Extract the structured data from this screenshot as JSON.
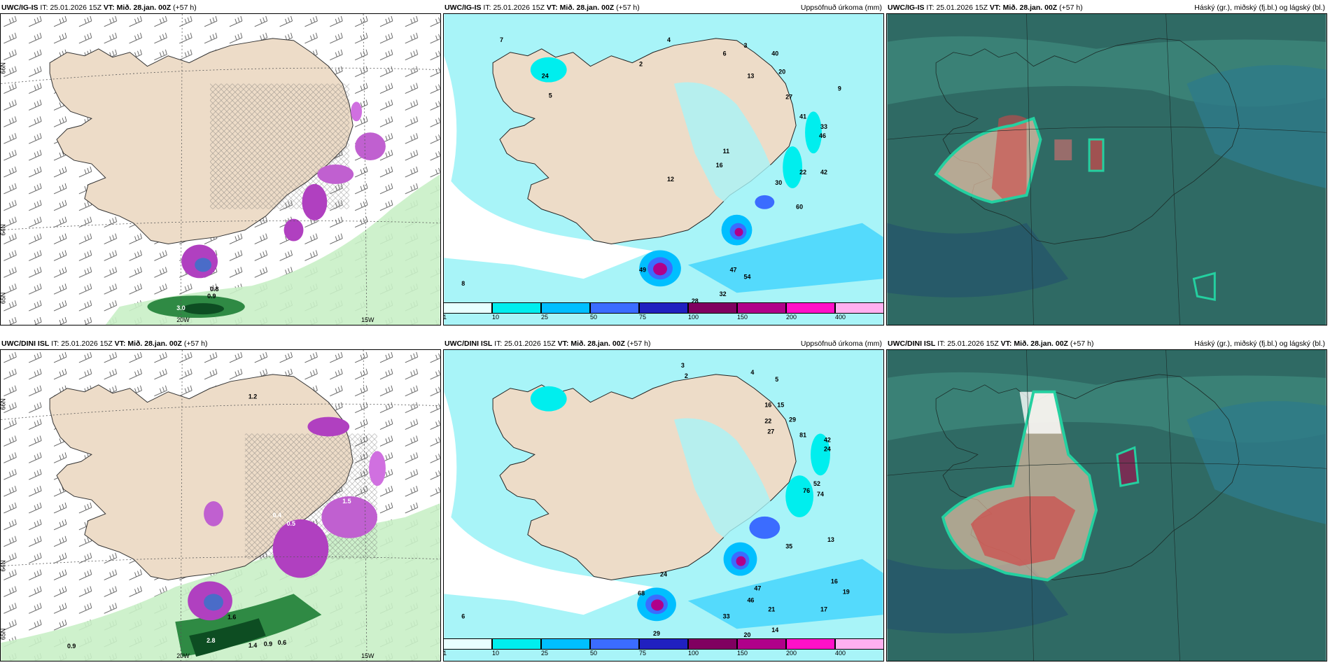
{
  "panels": [
    {
      "id": "top-left",
      "model": "UWC/IG-IS",
      "init_label": "IT:",
      "init": "25.01.2026 15Z",
      "valid_label": "VT:",
      "valid": "Mið. 28.jan. 00Z",
      "lead": "(+57 h)",
      "right_title": "",
      "lat_labels": [
        "66N",
        "64N",
        "65N"
      ],
      "lon_labels": [
        "20W",
        "15W"
      ],
      "values": [
        "0.8",
        "0.9",
        "3.0"
      ]
    },
    {
      "id": "top-mid",
      "model": "UWC/IG-IS",
      "init_label": "IT:",
      "init": "25.01.2026 15Z",
      "valid_label": "VT:",
      "valid": "Mið. 28.jan. 00Z",
      "lead": "(+57 h)",
      "right_title": "Uppsöfnuð úrkoma (mm)",
      "values": [
        "7",
        "2",
        "4",
        "6",
        "3",
        "9",
        "13",
        "20",
        "24",
        "27",
        "41",
        "33",
        "46",
        "42",
        "22",
        "30",
        "60",
        "12",
        "16",
        "11",
        "5",
        "47",
        "54",
        "32",
        "28",
        "49",
        "8",
        "40"
      ]
    },
    {
      "id": "top-right",
      "model": "UWC/IG-IS",
      "init_label": "IT:",
      "init": "25.01.2026 15Z",
      "valid_label": "VT:",
      "valid": "Mið. 28.jan. 00Z",
      "lead": "(+57 h)",
      "right_title": "Háský (gr.), miðský (fj.bl.) og lágský (bl.)"
    },
    {
      "id": "bottom-left",
      "model": "UWC/DINI ISL",
      "init_label": "IT:",
      "init": "25.01.2026 15Z",
      "valid_label": "VT:",
      "valid": "Mið. 28.jan. 00Z",
      "lead": "(+57 h)",
      "right_title": "",
      "lat_labels": [
        "66N",
        "64N",
        "65N"
      ],
      "lon_labels": [
        "20W",
        "15W"
      ],
      "values": [
        "1.2",
        "0.4",
        "0.5",
        "1.5",
        "1.6",
        "2.8",
        "1.4",
        "0.9",
        "0.6",
        "0.9"
      ]
    },
    {
      "id": "bottom-mid",
      "model": "UWC/DINI ISL",
      "init_label": "IT:",
      "init": "25.01.2026 15Z",
      "valid_label": "VT:",
      "valid": "Mið. 28.jan. 00Z",
      "lead": "(+57 h)",
      "right_title": "Uppsöfnuð úrkoma (mm)",
      "values": [
        "3",
        "2",
        "4",
        "5",
        "16",
        "15",
        "22",
        "29",
        "27",
        "81",
        "42",
        "24",
        "76",
        "52",
        "74",
        "35",
        "13",
        "16",
        "19",
        "17",
        "21",
        "47",
        "46",
        "33",
        "20",
        "14",
        "29",
        "24",
        "6",
        "68"
      ]
    },
    {
      "id": "bottom-right",
      "model": "UWC/DINI ISL",
      "init_label": "IT:",
      "init": "25.01.2026 15Z",
      "valid_label": "VT:",
      "valid": "Mið. 28.jan. 00Z",
      "lead": "(+57 h)",
      "right_title": "Háský (gr.), miðský (fj.bl.) og lágský (bl.)"
    }
  ],
  "colorbar": {
    "labels": [
      "1",
      "10",
      "25",
      "50",
      "75",
      "100",
      "150",
      "200",
      "400"
    ],
    "colors": [
      "#e8ffff",
      "#00eeee",
      "#00bfff",
      "#3b6cff",
      "#2020c0",
      "#800060",
      "#b0008a",
      "#ff10c8",
      "#ffb0f0"
    ]
  },
  "colors": {
    "land": "#eddcc8",
    "sea_precip": "#a8f4f8",
    "cloud_base": "#2f6a64",
    "green_precip": "#3a9a50",
    "purple_precip": "#b040c0"
  }
}
